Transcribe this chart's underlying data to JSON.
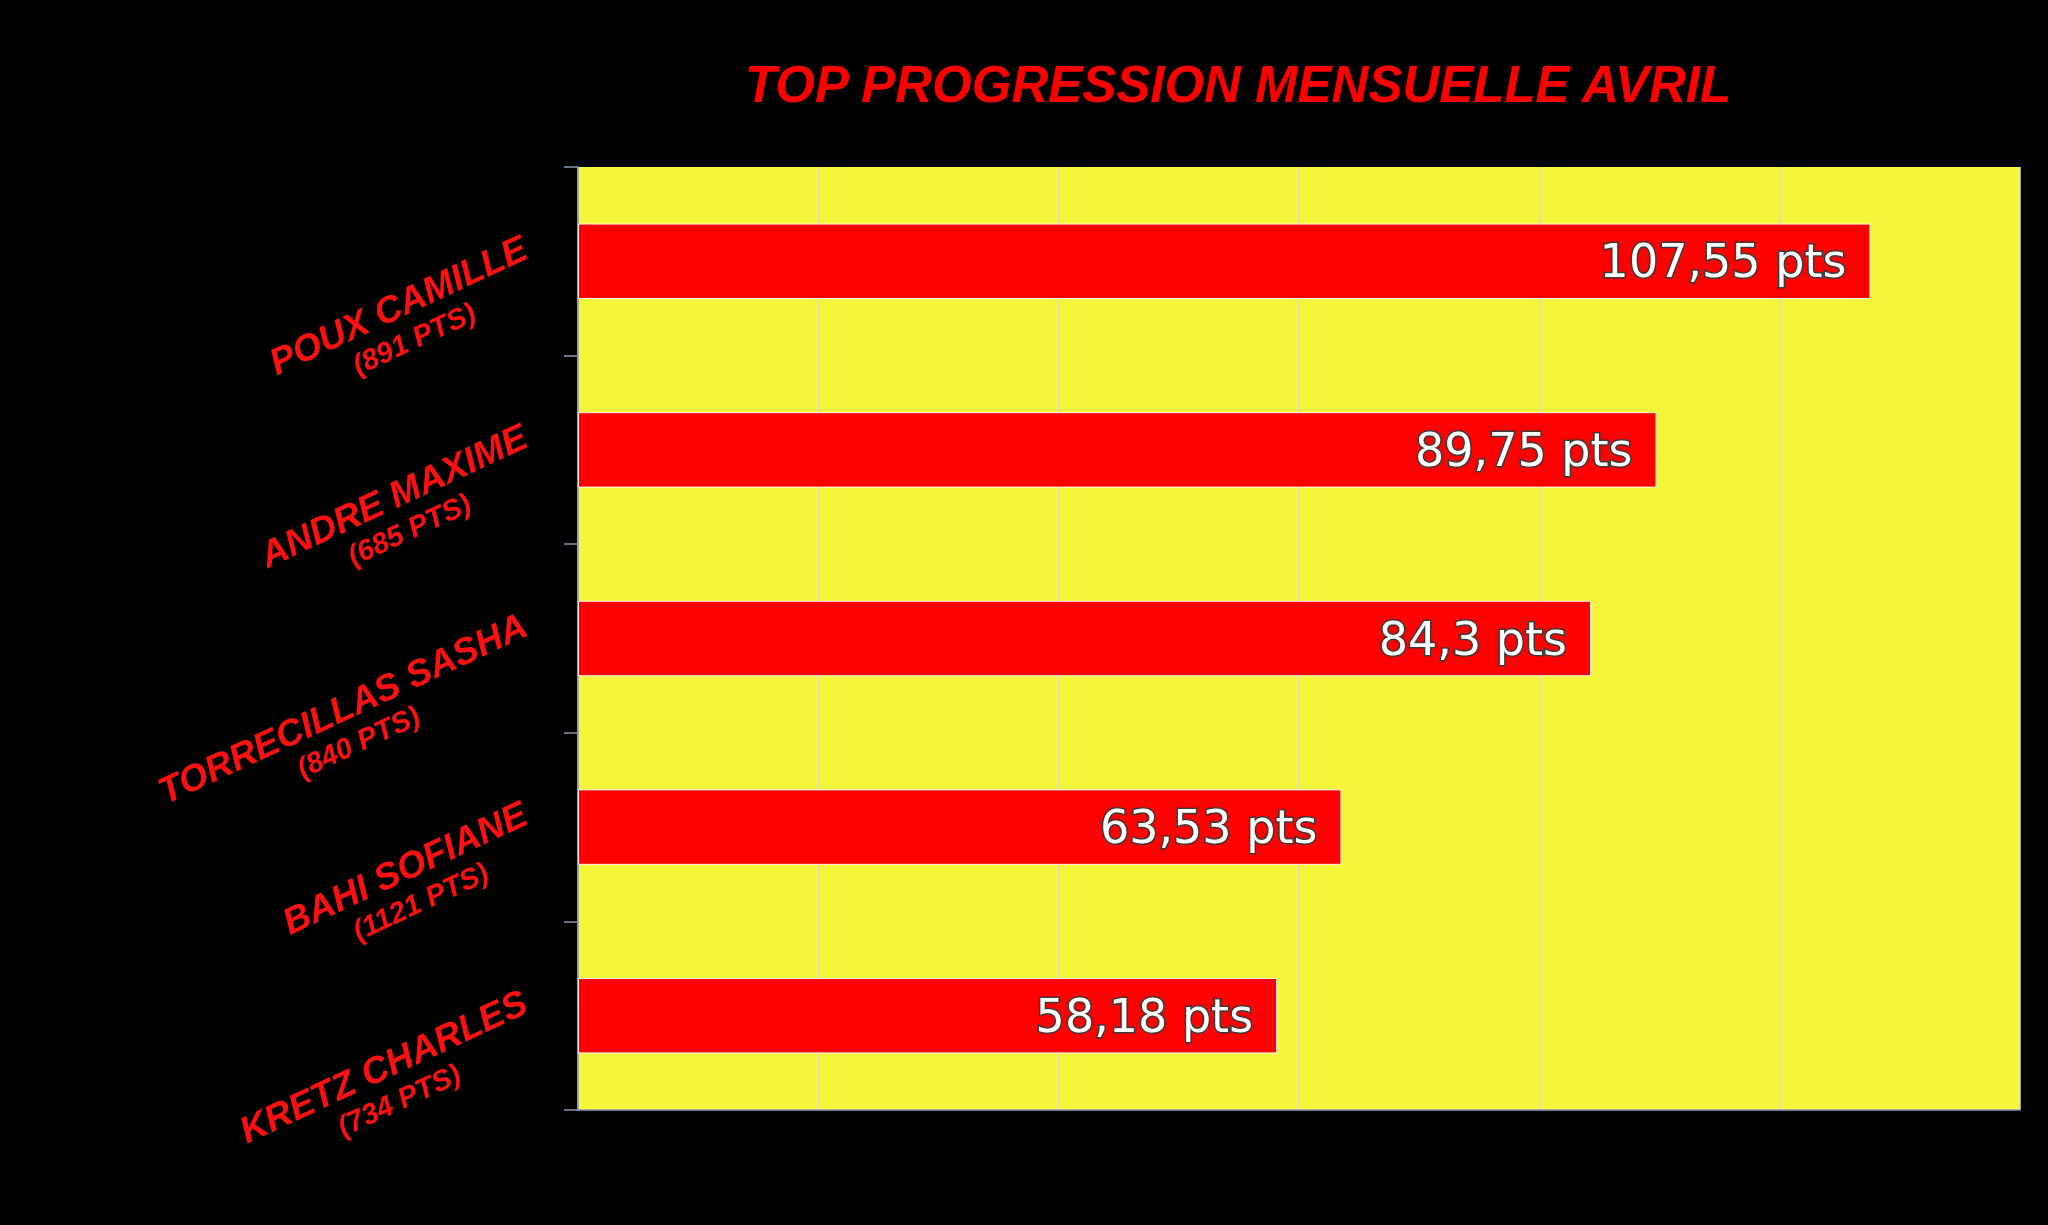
{
  "chart_data": {
    "type": "bar",
    "orientation": "horizontal",
    "title": "TOP PROGRESSION MENSUELLE AVRIL",
    "categories": [
      "POUX CAMILLE\n(891 PTS)",
      "ANDRE MAXIME\n(685 PTS)",
      "TORRECILLAS SASHA\n(840 PTS)",
      "BAHI SOFIANE\n(1121 PTS)",
      "KRETZ CHARLES\n(734 PTS)"
    ],
    "values": [
      107.55,
      89.75,
      84.3,
      63.53,
      58.18
    ],
    "value_labels": [
      "107,55 pts",
      "89,75 pts",
      "84,3 pts",
      "63,53 pts",
      "58,18 pts"
    ],
    "color": "#ff0000",
    "xlim": [
      0,
      120
    ],
    "xticks": [
      {
        "value": 0,
        "label": null
      },
      {
        "value": 20,
        "label": null
      },
      {
        "value": 40,
        "label": null
      },
      {
        "value": 60,
        "label": null
      },
      {
        "value": 80,
        "label": null
      },
      {
        "value": 100,
        "label": null
      },
      {
        "value": 120,
        "label": null
      }
    ],
    "grid": "x",
    "tick_labels": "y"
  }
}
